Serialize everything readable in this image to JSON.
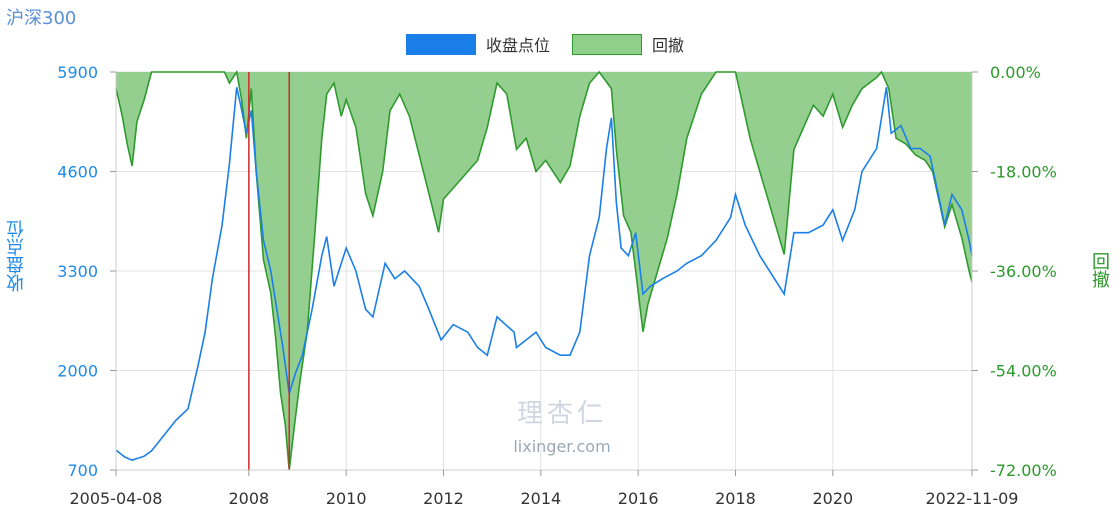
{
  "title": "沪深300",
  "legend": [
    {
      "name": "收盘点位",
      "color": "#1a7fe8"
    },
    {
      "name": "回撤",
      "color": "#8fcf8a",
      "border": "#2f9a2f"
    }
  ],
  "watermark": {
    "line1": "理杏仁",
    "line2": "lixinger.com"
  },
  "chart_data": {
    "type": "line",
    "title": "沪深300",
    "xlabel": "",
    "ylabel_left": "收盘点位",
    "ylabel_right": "回撤",
    "x_ticks": [
      "2005-04-08",
      "2008",
      "2010",
      "2012",
      "2014",
      "2016",
      "2018",
      "2020",
      "2022-11-09"
    ],
    "y_left_ticks": [
      "5900",
      "4600",
      "3300",
      "2000",
      "700"
    ],
    "y_right_ticks": [
      "0.00%",
      "-18.00%",
      "-36.00%",
      "-54.00%",
      "-72.00%"
    ],
    "ylim_left": [
      700,
      5900
    ],
    "ylim_right": [
      -72,
      0
    ],
    "xlim": [
      2005.27,
      2022.86
    ],
    "grid": true,
    "markers": [
      2008.0,
      2008.83
    ],
    "series": [
      {
        "name": "收盘点位",
        "axis": "left",
        "color": "#1a7fe8",
        "points": [
          [
            2005.27,
            960
          ],
          [
            2005.45,
            870
          ],
          [
            2005.6,
            830
          ],
          [
            2005.85,
            880
          ],
          [
            2006.0,
            950
          ],
          [
            2006.25,
            1150
          ],
          [
            2006.5,
            1350
          ],
          [
            2006.75,
            1500
          ],
          [
            2006.95,
            2050
          ],
          [
            2007.1,
            2500
          ],
          [
            2007.25,
            3200
          ],
          [
            2007.45,
            3900
          ],
          [
            2007.6,
            4700
          ],
          [
            2007.75,
            5700
          ],
          [
            2007.82,
            5500
          ],
          [
            2007.95,
            5100
          ],
          [
            2008.05,
            5400
          ],
          [
            2008.15,
            4600
          ],
          [
            2008.3,
            3700
          ],
          [
            2008.45,
            3300
          ],
          [
            2008.55,
            2900
          ],
          [
            2008.7,
            2300
          ],
          [
            2008.83,
            1700
          ],
          [
            2008.95,
            1950
          ],
          [
            2009.1,
            2200
          ],
          [
            2009.3,
            2800
          ],
          [
            2009.5,
            3500
          ],
          [
            2009.6,
            3750
          ],
          [
            2009.75,
            3100
          ],
          [
            2009.9,
            3400
          ],
          [
            2010.0,
            3600
          ],
          [
            2010.2,
            3300
          ],
          [
            2010.4,
            2800
          ],
          [
            2010.55,
            2700
          ],
          [
            2010.8,
            3400
          ],
          [
            2011.0,
            3200
          ],
          [
            2011.2,
            3300
          ],
          [
            2011.5,
            3100
          ],
          [
            2011.7,
            2800
          ],
          [
            2011.95,
            2400
          ],
          [
            2012.2,
            2600
          ],
          [
            2012.5,
            2500
          ],
          [
            2012.7,
            2300
          ],
          [
            2012.9,
            2200
          ],
          [
            2013.1,
            2700
          ],
          [
            2013.45,
            2500
          ],
          [
            2013.5,
            2300
          ],
          [
            2013.7,
            2400
          ],
          [
            2013.9,
            2500
          ],
          [
            2014.1,
            2300
          ],
          [
            2014.4,
            2200
          ],
          [
            2014.6,
            2200
          ],
          [
            2014.8,
            2500
          ],
          [
            2015.0,
            3500
          ],
          [
            2015.2,
            4000
          ],
          [
            2015.35,
            4900
          ],
          [
            2015.45,
            5300
          ],
          [
            2015.55,
            4200
          ],
          [
            2015.65,
            3600
          ],
          [
            2015.8,
            3500
          ],
          [
            2015.95,
            3800
          ],
          [
            2016.1,
            3000
          ],
          [
            2016.25,
            3100
          ],
          [
            2016.5,
            3200
          ],
          [
            2016.8,
            3300
          ],
          [
            2017.0,
            3400
          ],
          [
            2017.3,
            3500
          ],
          [
            2017.6,
            3700
          ],
          [
            2017.9,
            4000
          ],
          [
            2018.0,
            4300
          ],
          [
            2018.2,
            3900
          ],
          [
            2018.5,
            3500
          ],
          [
            2018.8,
            3200
          ],
          [
            2019.0,
            3000
          ],
          [
            2019.2,
            3800
          ],
          [
            2019.5,
            3800
          ],
          [
            2019.8,
            3900
          ],
          [
            2020.0,
            4100
          ],
          [
            2020.2,
            3700
          ],
          [
            2020.45,
            4100
          ],
          [
            2020.6,
            4600
          ],
          [
            2020.9,
            4900
          ],
          [
            2021.0,
            5300
          ],
          [
            2021.1,
            5700
          ],
          [
            2021.2,
            5100
          ],
          [
            2021.4,
            5200
          ],
          [
            2021.6,
            4900
          ],
          [
            2021.8,
            4900
          ],
          [
            2022.0,
            4800
          ],
          [
            2022.2,
            4200
          ],
          [
            2022.3,
            3900
          ],
          [
            2022.45,
            4300
          ],
          [
            2022.65,
            4100
          ],
          [
            2022.8,
            3700
          ],
          [
            2022.86,
            3500
          ]
        ]
      },
      {
        "name": "回撤",
        "axis": "right",
        "color": "#2f9a2f",
        "fill": "#95cf8f",
        "points": [
          [
            2005.27,
            -3
          ],
          [
            2005.4,
            -8
          ],
          [
            2005.5,
            -13
          ],
          [
            2005.6,
            -17
          ],
          [
            2005.7,
            -9
          ],
          [
            2005.85,
            -5
          ],
          [
            2006.0,
            0
          ],
          [
            2007.5,
            0
          ],
          [
            2007.6,
            -2
          ],
          [
            2007.75,
            0
          ],
          [
            2007.85,
            -5
          ],
          [
            2007.95,
            -12
          ],
          [
            2008.05,
            -3
          ],
          [
            2008.15,
            -18
          ],
          [
            2008.3,
            -34
          ],
          [
            2008.45,
            -40
          ],
          [
            2008.55,
            -48
          ],
          [
            2008.65,
            -58
          ],
          [
            2008.75,
            -64
          ],
          [
            2008.83,
            -72
          ],
          [
            2008.95,
            -63
          ],
          [
            2009.05,
            -56
          ],
          [
            2009.2,
            -47
          ],
          [
            2009.35,
            -30
          ],
          [
            2009.5,
            -12
          ],
          [
            2009.6,
            -4
          ],
          [
            2009.75,
            -2
          ],
          [
            2009.9,
            -8
          ],
          [
            2010.0,
            -5
          ],
          [
            2010.2,
            -10
          ],
          [
            2010.4,
            -22
          ],
          [
            2010.55,
            -26
          ],
          [
            2010.75,
            -18
          ],
          [
            2010.9,
            -7
          ],
          [
            2011.1,
            -4
          ],
          [
            2011.3,
            -8
          ],
          [
            2011.5,
            -15
          ],
          [
            2011.7,
            -22
          ],
          [
            2011.9,
            -29
          ],
          [
            2012.0,
            -23
          ],
          [
            2012.2,
            -21
          ],
          [
            2012.5,
            -18
          ],
          [
            2012.7,
            -16
          ],
          [
            2012.9,
            -10
          ],
          [
            2013.1,
            -2
          ],
          [
            2013.3,
            -4
          ],
          [
            2013.5,
            -14
          ],
          [
            2013.7,
            -12
          ],
          [
            2013.9,
            -18
          ],
          [
            2014.1,
            -16
          ],
          [
            2014.4,
            -20
          ],
          [
            2014.6,
            -17
          ],
          [
            2014.8,
            -8
          ],
          [
            2015.0,
            -2
          ],
          [
            2015.2,
            0
          ],
          [
            2015.45,
            -3
          ],
          [
            2015.55,
            -14
          ],
          [
            2015.7,
            -26
          ],
          [
            2015.85,
            -29
          ],
          [
            2015.95,
            -36
          ],
          [
            2016.1,
            -47
          ],
          [
            2016.2,
            -42
          ],
          [
            2016.4,
            -36
          ],
          [
            2016.6,
            -30
          ],
          [
            2016.8,
            -22
          ],
          [
            2017.0,
            -12
          ],
          [
            2017.3,
            -4
          ],
          [
            2017.6,
            0
          ],
          [
            2018.0,
            0
          ],
          [
            2018.1,
            -4
          ],
          [
            2018.3,
            -12
          ],
          [
            2018.5,
            -18
          ],
          [
            2018.7,
            -24
          ],
          [
            2018.9,
            -30
          ],
          [
            2019.0,
            -33
          ],
          [
            2019.2,
            -14
          ],
          [
            2019.4,
            -10
          ],
          [
            2019.6,
            -6
          ],
          [
            2019.8,
            -8
          ],
          [
            2020.0,
            -4
          ],
          [
            2020.2,
            -10
          ],
          [
            2020.4,
            -6
          ],
          [
            2020.6,
            -3
          ],
          [
            2020.9,
            -1
          ],
          [
            2021.0,
            0
          ],
          [
            2021.15,
            -3
          ],
          [
            2021.3,
            -12
          ],
          [
            2021.5,
            -13
          ],
          [
            2021.7,
            -15
          ],
          [
            2021.9,
            -16
          ],
          [
            2022.05,
            -18
          ],
          [
            2022.2,
            -24
          ],
          [
            2022.3,
            -28
          ],
          [
            2022.45,
            -24
          ],
          [
            2022.65,
            -30
          ],
          [
            2022.8,
            -36
          ],
          [
            2022.86,
            -38
          ]
        ]
      }
    ]
  }
}
